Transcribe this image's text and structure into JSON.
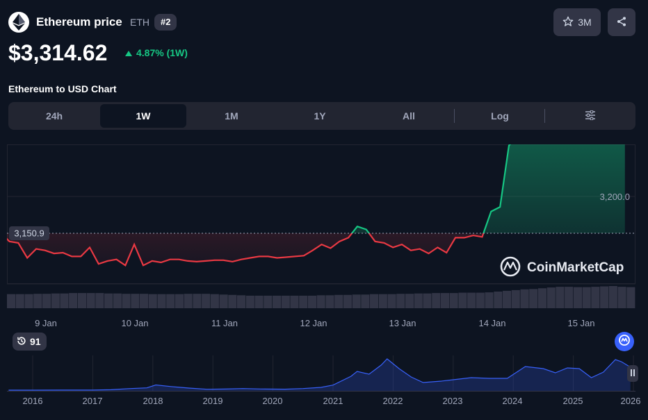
{
  "header": {
    "title": "Ethereum price",
    "symbol": "ETH",
    "rank": "#2",
    "watchlist_count": "3M",
    "price": "$3,314.62",
    "change": "4.87% (1W)",
    "change_color": "#16c784",
    "icons": [
      "ethereum-logo-icon",
      "star-icon",
      "share-icon",
      "arrow-up-icon"
    ]
  },
  "chart_title": "Ethereum to USD Chart",
  "tabs": [
    "24h",
    "1W",
    "1M",
    "1Y",
    "All",
    "Log"
  ],
  "active_tab": "1W",
  "history_badge": "91",
  "watermark": "CoinMarketCap",
  "colors": {
    "up": "#16c784",
    "down": "#ea3943",
    "volume": "#323546",
    "navigator": "#3861fb",
    "background": "#0d1421"
  },
  "chart_data": {
    "type": "line",
    "title": "Ethereum to USD Chart",
    "reference_line": {
      "label": "3,150.9",
      "value": 3150.9
    },
    "grid_label": {
      "label": "3,200.0",
      "value": 3200.0
    },
    "x_ticks": [
      "9 Jan",
      "10 Jan",
      "11 Jan",
      "12 Jan",
      "13 Jan",
      "14 Jan",
      "15 Jan"
    ],
    "price_series": {
      "x_days": [
        8.6,
        8.7,
        8.8,
        8.9,
        9.0,
        9.1,
        9.2,
        9.3,
        9.4,
        9.5,
        9.6,
        9.7,
        9.8,
        9.9,
        10.0,
        10.1,
        10.2,
        10.3,
        10.4,
        10.5,
        10.6,
        10.7,
        10.8,
        10.9,
        11.0,
        11.1,
        11.2,
        11.3,
        11.4,
        11.5,
        11.6,
        11.7,
        11.8,
        11.9,
        12.0,
        12.1,
        12.2,
        12.3,
        12.4,
        12.5,
        12.6,
        12.7,
        12.8,
        12.9,
        13.0,
        13.1,
        13.2,
        13.3,
        13.4,
        13.5,
        13.6,
        13.7,
        13.8,
        13.9,
        14.0,
        14.1,
        14.2,
        14.3,
        14.4,
        14.5,
        14.6,
        14.7,
        14.8,
        14.9,
        15.0,
        15.1,
        15.2,
        15.3,
        15.4,
        15.5,
        15.6
      ],
      "values": [
        3152,
        3140,
        3138,
        3118,
        3130,
        3128,
        3124,
        3125,
        3120,
        3120,
        3132,
        3110,
        3114,
        3116,
        3108,
        3136,
        3108,
        3114,
        3112,
        3116,
        3116,
        3114,
        3113,
        3114,
        3115,
        3115,
        3113,
        3116,
        3118,
        3120,
        3120,
        3118,
        3119,
        3120,
        3121,
        3128,
        3136,
        3131,
        3140,
        3145,
        3160,
        3156,
        3140,
        3138,
        3132,
        3136,
        3128,
        3130,
        3124,
        3132,
        3125,
        3145,
        3145,
        3148,
        3146,
        3180,
        3186,
        3268,
        3280,
        3278,
        3285,
        3273,
        3277,
        3292,
        3284,
        3285,
        3300,
        3300,
        3305,
        3288,
        3280
      ]
    },
    "volume_series": [
      38,
      38,
      38,
      39,
      39,
      40,
      40,
      41,
      41,
      41,
      41,
      40,
      40,
      39,
      39,
      39,
      38,
      38,
      38,
      38,
      39,
      39,
      39,
      38,
      37,
      36,
      35,
      34,
      34,
      34,
      34,
      34,
      34,
      34,
      34,
      35,
      35,
      36,
      36,
      37,
      37,
      38,
      38,
      38,
      39,
      39,
      40,
      40,
      41,
      41,
      41,
      42,
      42,
      42,
      43,
      45,
      47,
      49,
      51,
      52,
      54,
      56,
      58,
      58,
      57,
      57,
      58,
      59,
      60,
      58,
      57
    ],
    "navigator": {
      "years": [
        "2016",
        "2017",
        "2018",
        "2019",
        "2020",
        "2021",
        "2022",
        "2023",
        "2024",
        "2025",
        "2026"
      ],
      "x": [
        2015.6,
        2016.0,
        2016.5,
        2017.0,
        2017.3,
        2017.6,
        2017.9,
        2018.05,
        2018.3,
        2018.6,
        2018.9,
        2019.2,
        2019.5,
        2019.8,
        2020.2,
        2020.5,
        2020.8,
        2021.0,
        2021.3,
        2021.4,
        2021.6,
        2021.8,
        2021.9,
        2022.1,
        2022.3,
        2022.5,
        2022.8,
        2023.0,
        2023.3,
        2023.6,
        2023.9,
        2024.2,
        2024.5,
        2024.7,
        2024.9,
        2025.1,
        2025.3,
        2025.5,
        2025.7,
        2025.8,
        2025.95
      ],
      "values": [
        1,
        1,
        10,
        8,
        60,
        220,
        330,
        750,
        520,
        300,
        130,
        160,
        230,
        170,
        140,
        230,
        400,
        730,
        2000,
        2700,
        2300,
        3600,
        4500,
        3100,
        1900,
        1100,
        1300,
        1500,
        1800,
        1700,
        1700,
        3400,
        3100,
        2500,
        3200,
        3100,
        1800,
        2600,
        4400,
        4100,
        3314
      ]
    }
  }
}
